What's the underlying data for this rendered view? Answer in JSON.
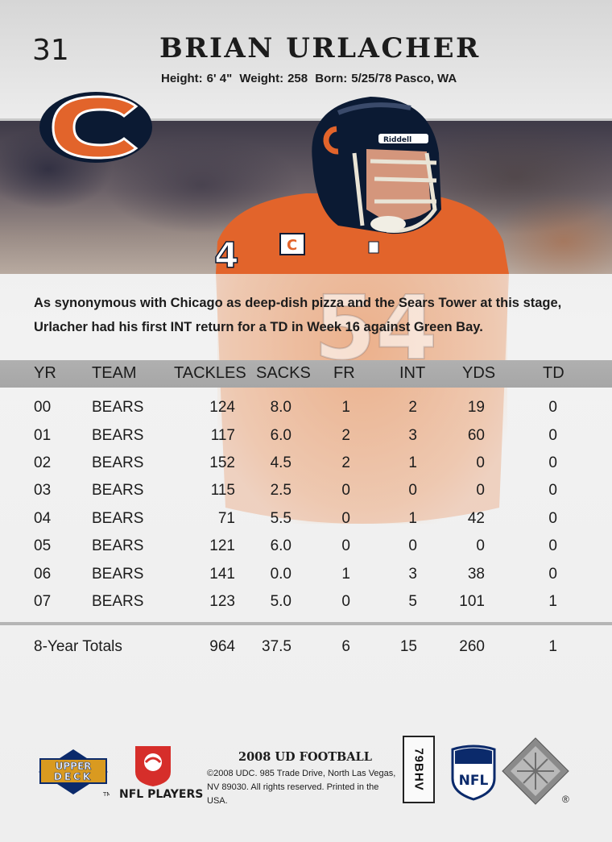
{
  "card": {
    "number": "31",
    "player_name": "BRIAN URLACHER",
    "bio": {
      "height_label": "Height:",
      "height": "6' 4\"",
      "weight_label": "Weight:",
      "weight": "258",
      "born_label": "Born:",
      "born": "5/25/78 Pasco, WA"
    },
    "jersey_number": "54",
    "captain_patch": "C",
    "helmet_brand": "Riddell",
    "blurb": "As synonymous with Chicago as deep-dish pizza and the Sears Tower at this stage, Urlacher had his first INT return for a TD in Week 16 against Green Bay."
  },
  "stats": {
    "headers": [
      "YR",
      "TEAM",
      "TACKLES",
      "SACKS",
      "FR",
      "INT",
      "YDS",
      "TD"
    ],
    "rows": [
      [
        "00",
        "BEARS",
        "124",
        "8.0",
        "1",
        "2",
        "19",
        "0"
      ],
      [
        "01",
        "BEARS",
        "117",
        "6.0",
        "2",
        "3",
        "60",
        "0"
      ],
      [
        "02",
        "BEARS",
        "152",
        "4.5",
        "2",
        "1",
        "0",
        "0"
      ],
      [
        "03",
        "BEARS",
        "115",
        "2.5",
        "0",
        "0",
        "0",
        "0"
      ],
      [
        "04",
        "BEARS",
        "71",
        "5.5",
        "0",
        "1",
        "42",
        "0"
      ],
      [
        "05",
        "BEARS",
        "121",
        "6.0",
        "0",
        "0",
        "0",
        "0"
      ],
      [
        "06",
        "BEARS",
        "141",
        "0.0",
        "1",
        "3",
        "38",
        "0"
      ],
      [
        "07",
        "BEARS",
        "123",
        "5.0",
        "0",
        "5",
        "101",
        "1"
      ]
    ],
    "totals": {
      "label": "8-Year Totals",
      "tackles": "964",
      "sacks": "37.5",
      "fr": "6",
      "int": "15",
      "yds": "260",
      "td": "1"
    }
  },
  "footer": {
    "upper_deck_line1": "UPPER",
    "upper_deck_line2": "DECK",
    "upper_deck_tm": "TM",
    "nfl_players_label": "NFL PLAYERS",
    "set_name": "2008 UD FOOTBALL",
    "legal": "©2008 UDC. 985 Trade Drive, North Las Vegas, NV 89030. All rights reserved. Printed in the USA.",
    "code": "79BHV",
    "nfl_shield_text": "NFL",
    "registered": "®"
  },
  "colors": {
    "bears_orange": "#e2642b",
    "bears_navy": "#0b1a33",
    "header_bar": "#aaaaaa"
  }
}
